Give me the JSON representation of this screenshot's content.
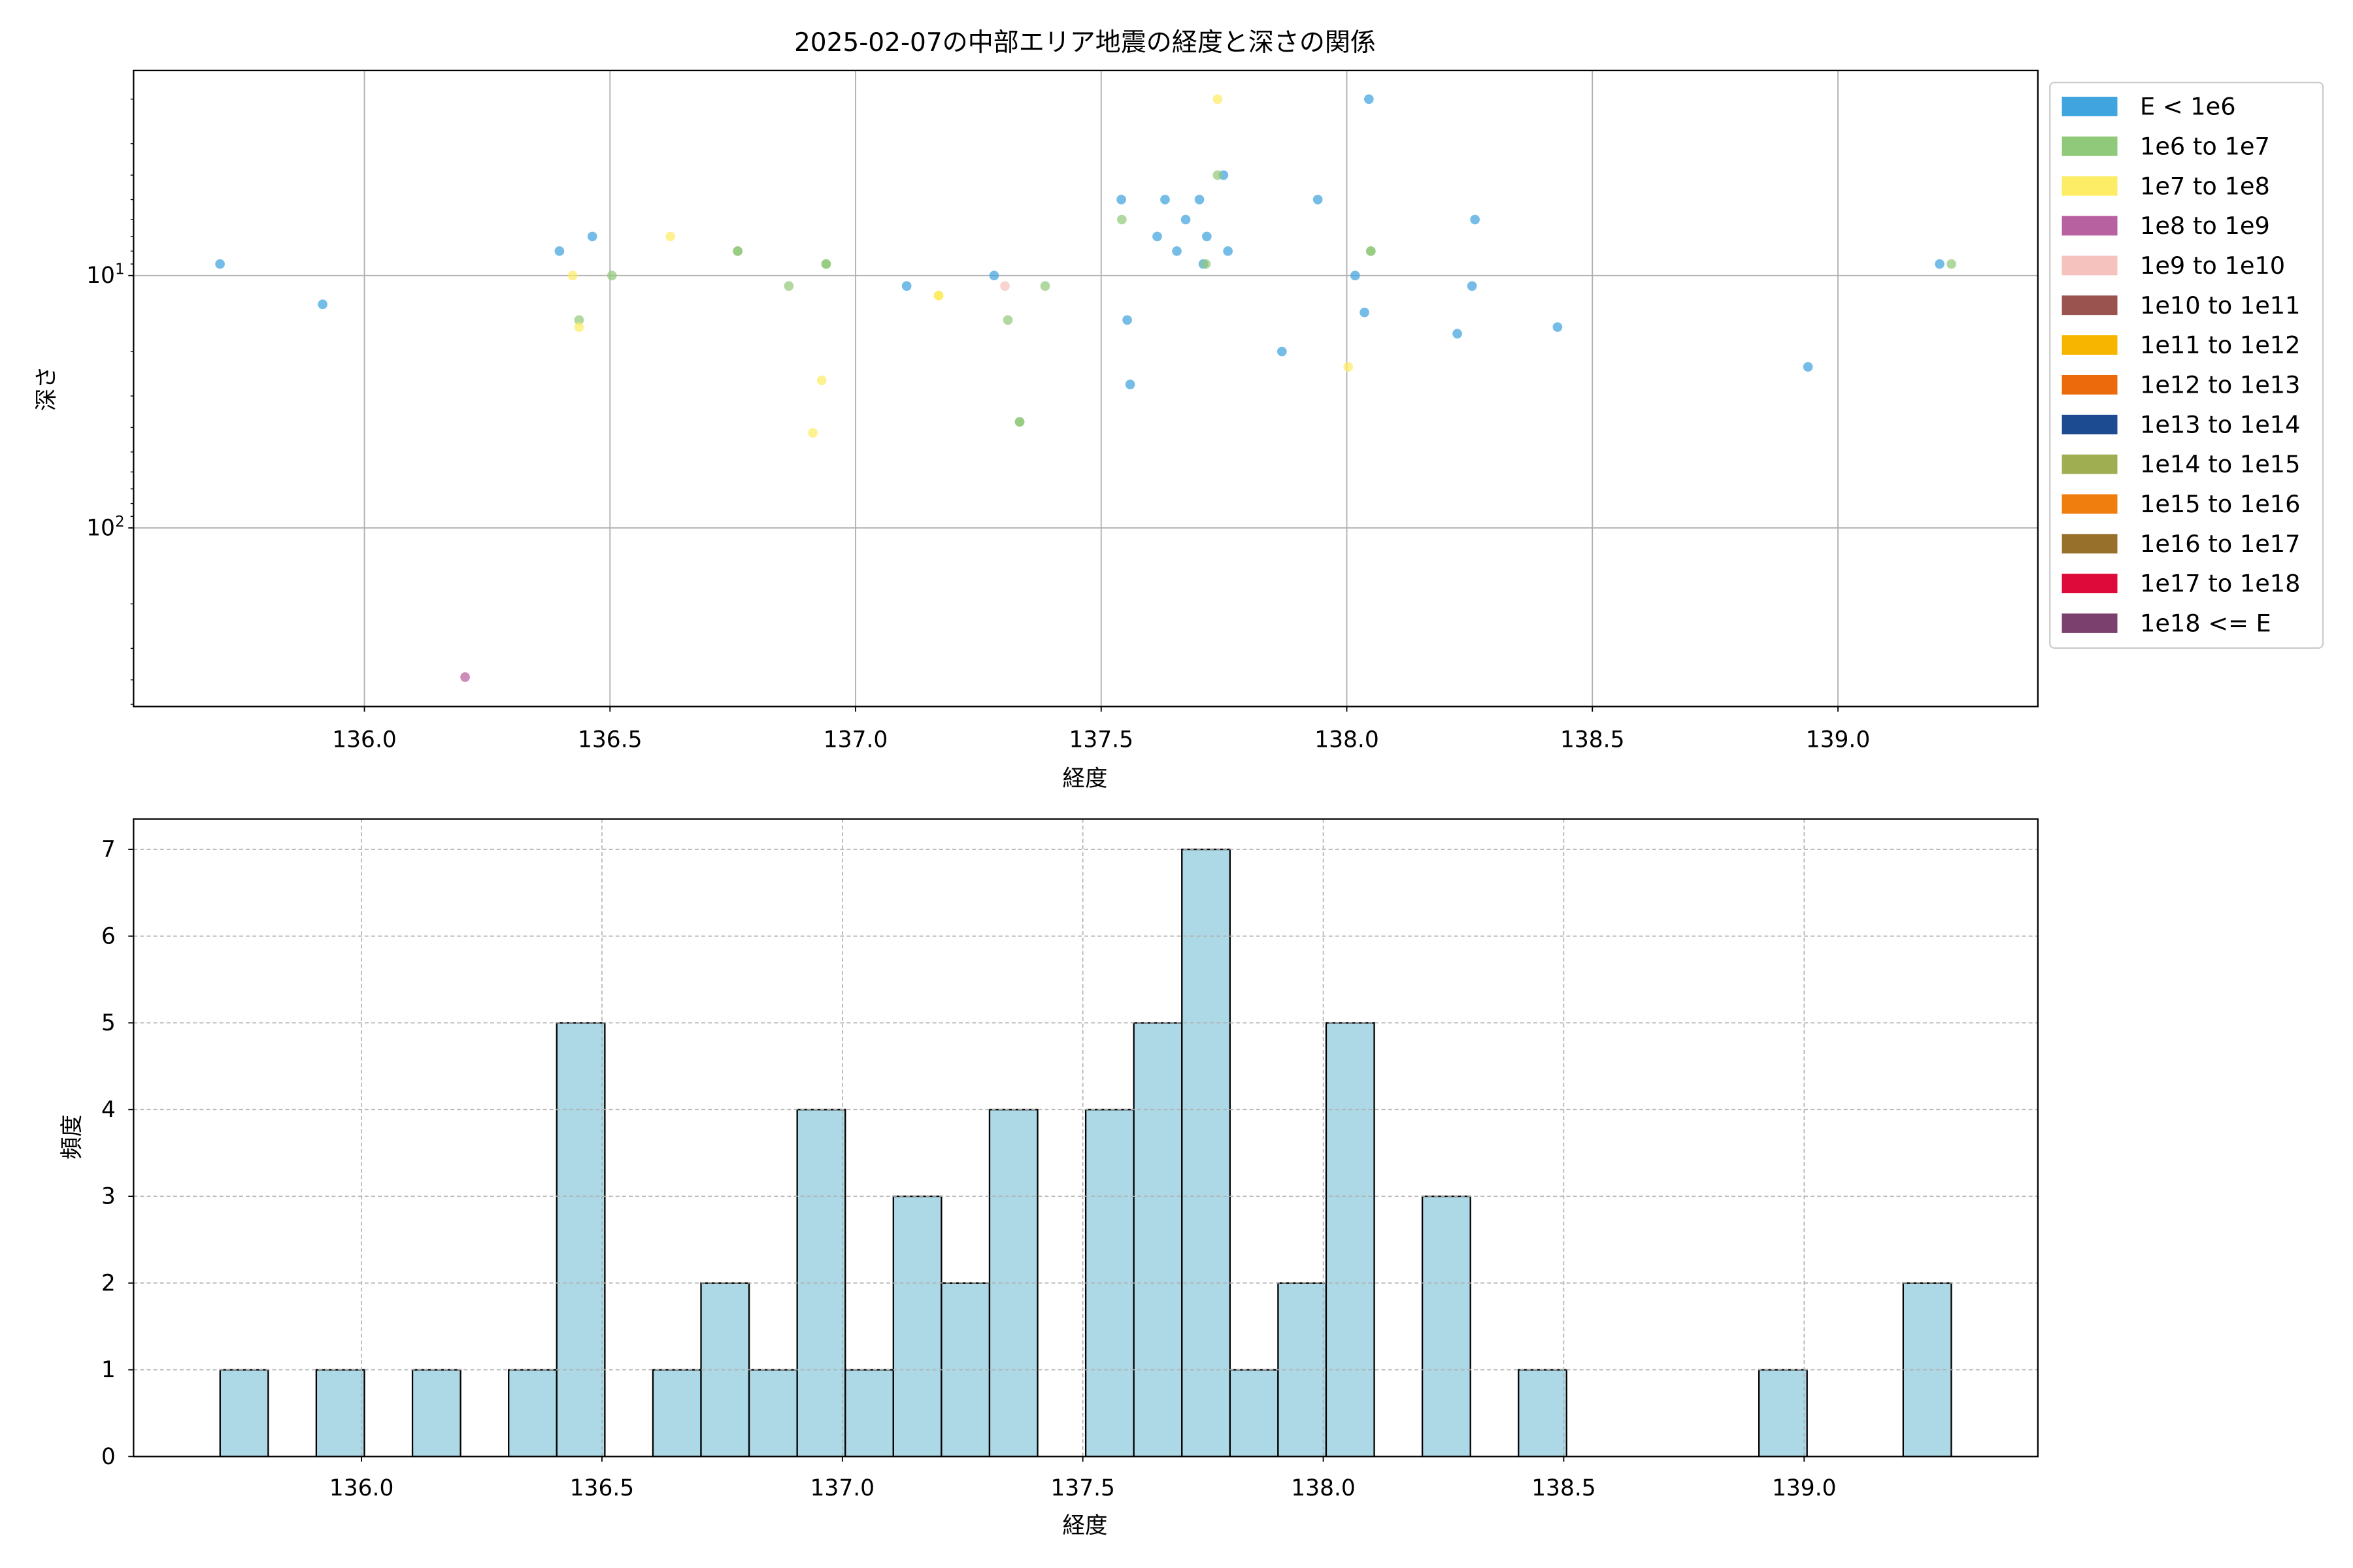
{
  "chart_data": [
    {
      "type": "scatter",
      "title": "2025-02-07の中部エリア地震の経度と深さの関係",
      "xlabel": "経度",
      "ylabel": "深さ",
      "xlim": [
        135.53,
        139.407
      ],
      "ylim": [
        1.54,
        510
      ],
      "yscale": "log",
      "y_inverted": true,
      "grid": true,
      "xticks": [
        "136.0",
        "136.5",
        "137.0",
        "137.5",
        "138.0",
        "138.5",
        "139.0"
      ],
      "yticks": [
        {
          "value": 10,
          "base": "10",
          "exp": "1"
        },
        {
          "value": 100,
          "base": "10",
          "exp": "2"
        }
      ],
      "marker_alpha": 0.72,
      "legend": {
        "position": "outside-right-top",
        "entries": [
          {
            "label": "E < 1e6",
            "color": "#40a4de"
          },
          {
            "label": "1e6 to 1e7",
            "color": "#91c97a"
          },
          {
            "label": "1e7 to 1e8",
            "color": "#fdec65"
          },
          {
            "label": "1e8 to 1e9",
            "color": "#b861a0"
          },
          {
            "label": "1e9 to 1e10",
            "color": "#f5c2be"
          },
          {
            "label": "1e10 to 1e11",
            "color": "#9b534f"
          },
          {
            "label": "1e11 to 1e12",
            "color": "#f8b500"
          },
          {
            "label": "1e12 to 1e13",
            "color": "#ec6a0b"
          },
          {
            "label": "1e13 to 1e14",
            "color": "#1d4b92"
          },
          {
            "label": "1e14 to 1e15",
            "color": "#a0ae52"
          },
          {
            "label": "1e15 to 1e16",
            "color": "#f07e0e"
          },
          {
            "label": "1e16 to 1e17",
            "color": "#97702b"
          },
          {
            "label": "1e17 to 1e18",
            "color": "#dd0a3a"
          },
          {
            "label": "1e18 <= E",
            "color": "#7b406e"
          }
        ]
      },
      "points": [
        {
          "lon": 135.706,
          "depth": 9,
          "energy_class": 0
        },
        {
          "lon": 135.915,
          "depth": 13,
          "energy_class": 0
        },
        {
          "lon": 136.397,
          "depth": 8,
          "energy_class": 0
        },
        {
          "lon": 136.464,
          "depth": 7,
          "energy_class": 0
        },
        {
          "lon": 137.104,
          "depth": 11,
          "energy_class": 0
        },
        {
          "lon": 137.282,
          "depth": 10,
          "energy_class": 0
        },
        {
          "lon": 137.541,
          "depth": 5,
          "energy_class": 0
        },
        {
          "lon": 137.553,
          "depth": 15,
          "energy_class": 0
        },
        {
          "lon": 137.559,
          "depth": 27,
          "energy_class": 0
        },
        {
          "lon": 137.614,
          "depth": 7,
          "energy_class": 0
        },
        {
          "lon": 137.63,
          "depth": 5,
          "energy_class": 0
        },
        {
          "lon": 137.654,
          "depth": 8,
          "energy_class": 0
        },
        {
          "lon": 137.672,
          "depth": 6,
          "energy_class": 0
        },
        {
          "lon": 137.7,
          "depth": 5,
          "energy_class": 0
        },
        {
          "lon": 137.708,
          "depth": 9,
          "energy_class": 0
        },
        {
          "lon": 137.715,
          "depth": 7,
          "energy_class": 0
        },
        {
          "lon": 137.749,
          "depth": 4,
          "energy_class": 0
        },
        {
          "lon": 137.758,
          "depth": 8,
          "energy_class": 0
        },
        {
          "lon": 137.868,
          "depth": 20,
          "energy_class": 0
        },
        {
          "lon": 137.941,
          "depth": 5,
          "energy_class": 0
        },
        {
          "lon": 138.017,
          "depth": 10,
          "energy_class": 0
        },
        {
          "lon": 138.036,
          "depth": 14,
          "energy_class": 0
        },
        {
          "lon": 138.045,
          "depth": 2,
          "energy_class": 0
        },
        {
          "lon": 138.225,
          "depth": 17,
          "energy_class": 0
        },
        {
          "lon": 138.255,
          "depth": 11,
          "energy_class": 0
        },
        {
          "lon": 138.261,
          "depth": 6,
          "energy_class": 0
        },
        {
          "lon": 138.429,
          "depth": 16,
          "energy_class": 0
        },
        {
          "lon": 138.939,
          "depth": 23,
          "energy_class": 0
        },
        {
          "lon": 139.207,
          "depth": 9,
          "energy_class": 0
        },
        {
          "lon": 136.437,
          "depth": 15,
          "energy_class": 1
        },
        {
          "lon": 136.504,
          "depth": 10,
          "energy_class": 1
        },
        {
          "lon": 136.76,
          "depth": 8,
          "energy_class": 1
        },
        {
          "lon": 136.76,
          "depth": 8,
          "energy_class": 1
        },
        {
          "lon": 136.864,
          "depth": 11,
          "energy_class": 1
        },
        {
          "lon": 136.94,
          "depth": 9,
          "energy_class": 1
        },
        {
          "lon": 136.94,
          "depth": 9,
          "energy_class": 1
        },
        {
          "lon": 137.31,
          "depth": 15,
          "energy_class": 1
        },
        {
          "lon": 137.334,
          "depth": 38,
          "energy_class": 1
        },
        {
          "lon": 137.334,
          "depth": 38,
          "energy_class": 1
        },
        {
          "lon": 137.386,
          "depth": 11,
          "energy_class": 1
        },
        {
          "lon": 137.542,
          "depth": 6,
          "energy_class": 1
        },
        {
          "lon": 137.713,
          "depth": 9,
          "energy_class": 1
        },
        {
          "lon": 137.737,
          "depth": 4,
          "energy_class": 1
        },
        {
          "lon": 138.049,
          "depth": 8,
          "energy_class": 1
        },
        {
          "lon": 138.049,
          "depth": 8,
          "energy_class": 1
        },
        {
          "lon": 139.231,
          "depth": 9,
          "energy_class": 1
        },
        {
          "lon": 136.424,
          "depth": 10,
          "energy_class": 2
        },
        {
          "lon": 136.437,
          "depth": 16,
          "energy_class": 2
        },
        {
          "lon": 136.623,
          "depth": 7,
          "energy_class": 2
        },
        {
          "lon": 136.913,
          "depth": 42,
          "energy_class": 2
        },
        {
          "lon": 136.931,
          "depth": 26,
          "energy_class": 2
        },
        {
          "lon": 137.169,
          "depth": 12,
          "energy_class": 2
        },
        {
          "lon": 137.169,
          "depth": 12,
          "energy_class": 2
        },
        {
          "lon": 137.169,
          "depth": 12,
          "energy_class": 2
        },
        {
          "lon": 137.737,
          "depth": 2,
          "energy_class": 2
        },
        {
          "lon": 138.003,
          "depth": 23,
          "energy_class": 2
        },
        {
          "lon": 136.205,
          "depth": 390,
          "energy_class": 3
        },
        {
          "lon": 137.304,
          "depth": 11,
          "energy_class": 4
        }
      ]
    },
    {
      "type": "bar",
      "subtype": "histogram",
      "xlabel": "経度",
      "ylabel": "頻度",
      "xlim": [
        135.526,
        139.486
      ],
      "ylim": [
        0,
        7.35
      ],
      "grid": "dashed",
      "xticks": [
        "136.0",
        "136.5",
        "137.0",
        "137.5",
        "138.0",
        "138.5",
        "139.0"
      ],
      "yticks": [
        "0",
        "1",
        "2",
        "3",
        "4",
        "5",
        "6",
        "7"
      ],
      "bar_color": "#add8e6",
      "edge_color": "#000000",
      "bins": [
        {
          "x0": 135.706,
          "x1": 135.806,
          "count": 1
        },
        {
          "x0": 135.906,
          "x1": 136.006,
          "count": 1
        },
        {
          "x0": 136.106,
          "x1": 136.206,
          "count": 1
        },
        {
          "x0": 136.306,
          "x1": 136.406,
          "count": 1
        },
        {
          "x0": 136.406,
          "x1": 136.506,
          "count": 5
        },
        {
          "x0": 136.606,
          "x1": 136.706,
          "count": 1
        },
        {
          "x0": 136.706,
          "x1": 136.806,
          "count": 2
        },
        {
          "x0": 136.806,
          "x1": 136.906,
          "count": 1
        },
        {
          "x0": 136.906,
          "x1": 137.006,
          "count": 4
        },
        {
          "x0": 137.006,
          "x1": 137.106,
          "count": 1
        },
        {
          "x0": 137.106,
          "x1": 137.206,
          "count": 3
        },
        {
          "x0": 137.206,
          "x1": 137.306,
          "count": 2
        },
        {
          "x0": 137.306,
          "x1": 137.406,
          "count": 4
        },
        {
          "x0": 137.506,
          "x1": 137.606,
          "count": 4
        },
        {
          "x0": 137.606,
          "x1": 137.706,
          "count": 5
        },
        {
          "x0": 137.706,
          "x1": 137.806,
          "count": 7
        },
        {
          "x0": 137.806,
          "x1": 137.906,
          "count": 1
        },
        {
          "x0": 137.906,
          "x1": 138.006,
          "count": 2
        },
        {
          "x0": 138.006,
          "x1": 138.106,
          "count": 5
        },
        {
          "x0": 138.206,
          "x1": 138.306,
          "count": 3
        },
        {
          "x0": 138.406,
          "x1": 138.506,
          "count": 1
        },
        {
          "x0": 138.906,
          "x1": 139.006,
          "count": 1
        },
        {
          "x0": 139.206,
          "x1": 139.306,
          "count": 2
        }
      ]
    }
  ]
}
